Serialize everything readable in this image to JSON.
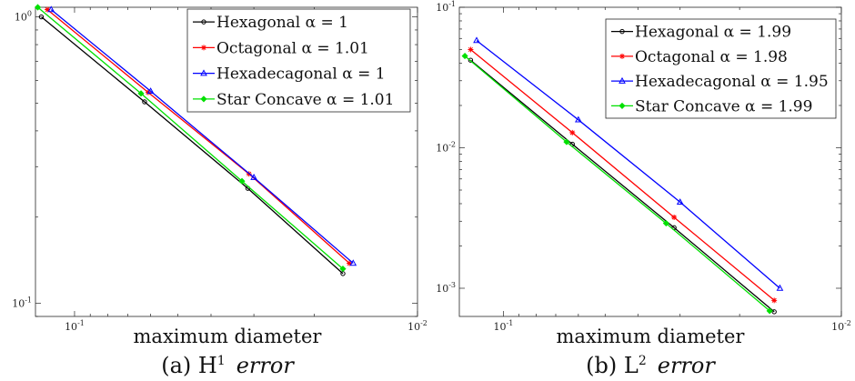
{
  "chart_data": [
    {
      "type": "line",
      "caption": {
        "label": "(a) H",
        "sup": "1",
        "italic": "error"
      },
      "xlabel": "maximum diameter",
      "ylabel": "",
      "xscale": "log",
      "yscale": "log",
      "xaxis_reversed": true,
      "xlim": [
        0.13,
        0.01
      ],
      "ylim": [
        0.09,
        1.08
      ],
      "xticks": [
        {
          "value": 0.1,
          "base": "10",
          "exp": "-1"
        },
        {
          "value": 0.01,
          "base": "10",
          "exp": "-2"
        }
      ],
      "yticks": [
        {
          "value": 0.1,
          "base": "10",
          "exp": "-1"
        },
        {
          "value": 1,
          "base": "10",
          "exp": "0"
        }
      ],
      "grid": false,
      "legend_position": "top-right",
      "series": [
        {
          "name": "Hexagonal α = 1",
          "color": "#000000",
          "marker": "circle",
          "x": [
            0.125,
            0.0625,
            0.03125,
            0.0165
          ],
          "y": [
            1.0,
            0.505,
            0.252,
            0.127
          ]
        },
        {
          "name": "Octagonal α = 1.01",
          "color": "#ff0000",
          "marker": "star",
          "x": [
            0.12,
            0.061,
            0.031,
            0.0158
          ],
          "y": [
            1.06,
            0.545,
            0.283,
            0.138
          ]
        },
        {
          "name": "Hexadecagonal α = 1",
          "color": "#0000ff",
          "marker": "triangle",
          "x": [
            0.117,
            0.06,
            0.03,
            0.0154
          ],
          "y": [
            1.06,
            0.55,
            0.275,
            0.138
          ]
        },
        {
          "name": "Star Concave α = 1.01",
          "color": "#00e000",
          "marker": "diamond",
          "x": [
            0.128,
            0.064,
            0.0325,
            0.0165
          ],
          "y": [
            1.08,
            0.54,
            0.267,
            0.132
          ]
        }
      ]
    },
    {
      "type": "line",
      "caption": {
        "label": "(b) L",
        "sup": "2",
        "italic": "error"
      },
      "xlabel": "maximum diameter",
      "ylabel": "",
      "xscale": "log",
      "yscale": "log",
      "xaxis_reversed": true,
      "xlim": [
        0.135,
        0.01
      ],
      "ylim": [
        0.00063,
        0.1
      ],
      "xticks": [
        {
          "value": 0.1,
          "base": "10",
          "exp": "-1"
        },
        {
          "value": 0.01,
          "base": "10",
          "exp": "-2"
        }
      ],
      "yticks": [
        {
          "value": 0.001,
          "base": "10",
          "exp": "-3"
        },
        {
          "value": 0.01,
          "base": "10",
          "exp": "-2"
        },
        {
          "value": 0.1,
          "base": "10",
          "exp": "-1"
        }
      ],
      "grid": false,
      "legend_position": "top-right",
      "series": [
        {
          "name": "Hexagonal α = 1.99",
          "color": "#000000",
          "marker": "circle",
          "x": [
            0.125,
            0.0625,
            0.03125,
            0.0158
          ],
          "y": [
            0.042,
            0.0106,
            0.0027,
            0.00068
          ]
        },
        {
          "name": "Octagonal α = 1.98",
          "color": "#ff0000",
          "marker": "star",
          "x": [
            0.125,
            0.0625,
            0.03125,
            0.0158
          ],
          "y": [
            0.05,
            0.0128,
            0.0032,
            0.00082
          ]
        },
        {
          "name": "Hexadecagonal α = 1.95",
          "color": "#0000ff",
          "marker": "triangle",
          "x": [
            0.12,
            0.06,
            0.03,
            0.0152
          ],
          "y": [
            0.058,
            0.0158,
            0.0041,
            0.001
          ]
        },
        {
          "name": "Star Concave α = 1.99",
          "color": "#00e000",
          "marker": "diamond",
          "x": [
            0.13,
            0.065,
            0.033,
            0.0163
          ],
          "y": [
            0.045,
            0.011,
            0.0029,
            0.00069
          ]
        }
      ]
    }
  ]
}
